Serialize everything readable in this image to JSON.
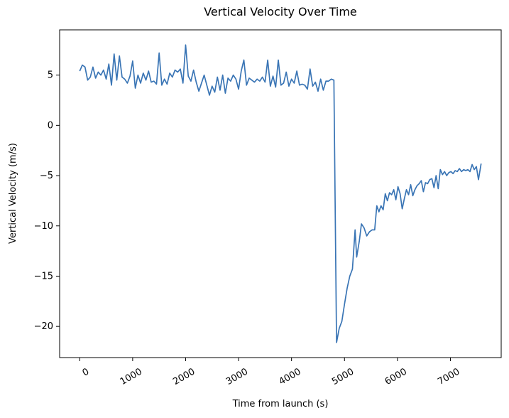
{
  "chart_data": {
    "type": "line",
    "title": "Vertical Velocity Over Time",
    "x_label": "Time from launch (s)",
    "y_label": "Vertical Velocity (m/s)",
    "x": [
      0,
      50,
      100,
      150,
      200,
      250,
      300,
      350,
      400,
      450,
      500,
      550,
      600,
      650,
      700,
      750,
      800,
      850,
      900,
      950,
      1000,
      1050,
      1100,
      1150,
      1200,
      1250,
      1300,
      1350,
      1400,
      1450,
      1500,
      1550,
      1600,
      1650,
      1700,
      1750,
      1800,
      1850,
      1900,
      1950,
      2000,
      2050,
      2100,
      2150,
      2200,
      2250,
      2300,
      2350,
      2400,
      2450,
      2500,
      2550,
      2600,
      2650,
      2700,
      2750,
      2800,
      2850,
      2900,
      2950,
      3000,
      3050,
      3100,
      3150,
      3200,
      3250,
      3300,
      3350,
      3400,
      3450,
      3500,
      3550,
      3600,
      3650,
      3700,
      3750,
      3800,
      3850,
      3900,
      3950,
      4000,
      4050,
      4100,
      4150,
      4200,
      4250,
      4300,
      4350,
      4400,
      4450,
      4500,
      4550,
      4600,
      4650,
      4700,
      4750,
      4800,
      4850,
      4900,
      4950,
      5000,
      5050,
      5100,
      5150,
      5200,
      5230,
      5280,
      5320,
      5370,
      5420,
      5470,
      5520,
      5570,
      5610,
      5650,
      5690,
      5730,
      5770,
      5810,
      5850,
      5890,
      5930,
      5970,
      6010,
      6050,
      6090,
      6130,
      6170,
      6210,
      6250,
      6290,
      6330,
      6370,
      6410,
      6450,
      6490,
      6530,
      6570,
      6610,
      6650,
      6690,
      6730,
      6770,
      6810,
      6850,
      6890,
      6930,
      6970,
      7010,
      7050,
      7090,
      7130,
      7170,
      7210,
      7250,
      7290,
      7330,
      7370,
      7410,
      7450,
      7490,
      7530,
      7580
    ],
    "series": [
      {
        "name": "Vertical Velocity",
        "color": "#3a75b5",
        "values": [
          5.4,
          6.0,
          5.8,
          4.5,
          4.8,
          5.8,
          4.7,
          5.3,
          5.0,
          5.5,
          4.6,
          6.1,
          4.0,
          7.1,
          4.5,
          6.9,
          4.8,
          4.6,
          4.2,
          4.9,
          6.4,
          3.7,
          5.0,
          4.2,
          5.2,
          4.5,
          5.4,
          4.3,
          4.4,
          4.1,
          7.2,
          4.0,
          4.6,
          4.1,
          5.2,
          4.8,
          5.5,
          5.3,
          5.6,
          4.2,
          8.0,
          4.9,
          4.4,
          5.5,
          4.3,
          3.4,
          4.2,
          5.0,
          4.0,
          3.0,
          3.9,
          3.3,
          4.8,
          3.5,
          5.0,
          3.2,
          4.7,
          4.4,
          5.0,
          4.6,
          3.6,
          5.4,
          6.5,
          4.0,
          4.7,
          4.5,
          4.3,
          4.6,
          4.4,
          4.8,
          4.3,
          6.5,
          3.9,
          4.9,
          3.8,
          6.5,
          4.0,
          4.2,
          5.3,
          3.9,
          4.6,
          4.2,
          5.4,
          4.0,
          4.1,
          4.0,
          3.6,
          5.6,
          3.9,
          4.3,
          3.4,
          4.6,
          3.5,
          4.4,
          4.4,
          4.6,
          4.5,
          -21.6,
          -20.2,
          -19.5,
          -17.8,
          -16.2,
          -15.0,
          -14.3,
          -10.4,
          -13.1,
          -11.5,
          -9.8,
          -10.2,
          -11.0,
          -10.6,
          -10.4,
          -10.4,
          -8.0,
          -8.6,
          -8.0,
          -8.4,
          -6.8,
          -7.5,
          -6.7,
          -6.9,
          -6.4,
          -7.4,
          -6.1,
          -6.8,
          -8.3,
          -7.3,
          -6.4,
          -6.9,
          -5.9,
          -7.0,
          -6.4,
          -6.0,
          -5.8,
          -5.5,
          -6.6,
          -5.7,
          -5.8,
          -5.4,
          -5.3,
          -6.2,
          -5.0,
          -6.3,
          -4.4,
          -4.9,
          -4.6,
          -5.0,
          -4.7,
          -4.6,
          -4.8,
          -4.5,
          -4.6,
          -4.3,
          -4.6,
          -4.4,
          -4.5,
          -4.4,
          -4.6,
          -3.9,
          -4.4,
          -4.1,
          -5.4,
          -3.8
        ]
      }
    ],
    "xlim": [
      -379,
      7959
    ],
    "ylim": [
      -23.1,
      9.5
    ],
    "xticks": [
      0,
      1000,
      2000,
      3000,
      4000,
      5000,
      6000,
      7000
    ],
    "yticks": [
      {
        "value": -20,
        "label": "−20"
      },
      {
        "value": -15,
        "label": "−15"
      },
      {
        "value": -10,
        "label": "−10"
      },
      {
        "value": -5,
        "label": "−5"
      },
      0,
      5
    ]
  }
}
